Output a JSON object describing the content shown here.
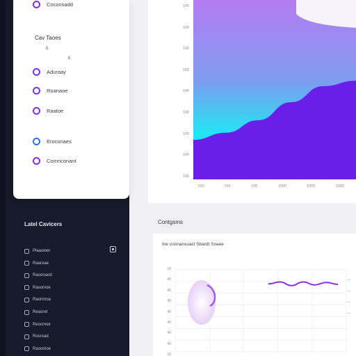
{
  "settings_card": {
    "top_item": "Coconsadd",
    "heading": "Cav Taoes",
    "sub_marks": [
      "£",
      "£"
    ],
    "items": [
      {
        "label": "Aduraay",
        "color": "#7b2ff0"
      },
      {
        "label": "Roanaoe",
        "color": "#7b2ff0"
      },
      {
        "label": "Raatoe",
        "color": "#7b2ff0"
      },
      {
        "label": "Eroconaes",
        "color": "#2f6fe8"
      },
      {
        "label": "Comnconant",
        "color": "#7b2ff0"
      }
    ]
  },
  "list_panel": {
    "title": "Latel Cavicers",
    "rows": [
      "Plaaoioer",
      "Raaroae",
      "Raoonaod",
      "Rasomoe",
      "Raonmoa",
      "Reaoret",
      "Reocmoe",
      "Rosroad",
      "Raoomoe"
    ]
  },
  "top_chart": {
    "y_ticks": [
      "100",
      "100",
      "100",
      "100",
      "100",
      "100",
      "100",
      "100",
      "100"
    ],
    "x_ticks": [
      "100",
      "100",
      "100",
      "1000",
      "1000",
      "1000"
    ]
  },
  "bottom_chart": {
    "title": "Contgsms",
    "subtitle": "Ine coonansoacl Sbardt Snaee",
    "y_ticks": [
      "10",
      "40",
      "40",
      "40",
      "40",
      "40",
      "40",
      "40",
      "10"
    ],
    "right_labels": [
      "—",
      "—",
      "—",
      "—"
    ]
  },
  "chart_data": [
    {
      "type": "area",
      "title": "",
      "x": [
        "100",
        "100",
        "100",
        "1000",
        "1000",
        "1000"
      ],
      "series": [
        {
          "values": [
            1.0,
            1.0,
            1.0,
            1.0,
            1.0,
            1.0
          ]
        },
        {
          "values": [
            0.22,
            0.26,
            0.33,
            0.43,
            0.52,
            0.55
          ]
        }
      ],
      "colors": [
        "#b57cf0",
        "#20e6f2",
        "#6a1fe8"
      ],
      "ylim": [
        0,
        1
      ],
      "grid": false
    },
    {
      "type": "line",
      "title": "Contgsms",
      "series": [
        {
          "values": [
            0.62,
            0.7,
            0.55,
            0.7,
            0.58,
            0.68,
            0.6
          ]
        }
      ],
      "colors": [
        "#8a2ee6"
      ],
      "grid": true
    }
  ]
}
